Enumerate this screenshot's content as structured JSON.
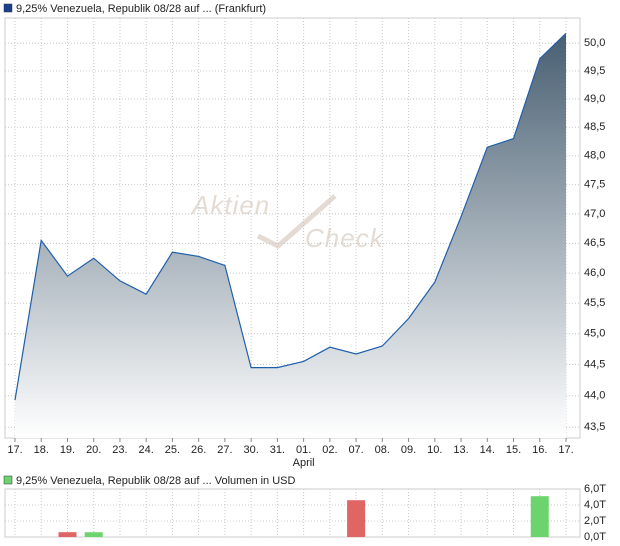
{
  "chart_data": [
    {
      "type": "line",
      "log_scale": true,
      "grid": true,
      "watermark": [
        "Aktien",
        "Check"
      ],
      "categories": [
        "17.",
        "18.",
        "19.",
        "20.",
        "23.",
        "24.",
        "25.",
        "26.",
        "27.",
        "30.",
        "31.",
        "01.",
        "02.",
        "07.",
        "08.",
        "09.",
        "10.",
        "13.",
        "14.",
        "15.",
        "16.",
        "17."
      ],
      "x_sublabels": [
        null,
        null,
        null,
        null,
        null,
        null,
        null,
        null,
        null,
        null,
        null,
        "April",
        null,
        null,
        null,
        null,
        null,
        null,
        null,
        null,
        null,
        null
      ],
      "series": [
        {
          "name": "9,25% Venezuela, Republik 08/28 auf ... (Frankfurt)",
          "color": "#1f5faa",
          "legend_color": "#1a3f8f",
          "values": [
            43.93,
            46.55,
            45.95,
            46.25,
            45.87,
            45.65,
            46.35,
            46.28,
            46.13,
            44.45,
            44.45,
            44.55,
            44.78,
            44.67,
            44.8,
            45.25,
            45.85,
            46.95,
            48.15,
            48.3,
            49.72,
            50.18
          ]
        }
      ],
      "ylim": [
        43.33,
        50.46
      ],
      "yticks": [
        {
          "value": 43.5,
          "label": "43,5"
        },
        {
          "value": 44,
          "label": "44,0"
        },
        {
          "value": 44.5,
          "label": "44,5"
        },
        {
          "value": 45,
          "label": "45,0"
        },
        {
          "value": 45.5,
          "label": "45,5"
        },
        {
          "value": 46,
          "label": "46,0"
        },
        {
          "value": 46.5,
          "label": "46,5"
        },
        {
          "value": 47,
          "label": "47,0"
        },
        {
          "value": 47.5,
          "label": "47,5"
        },
        {
          "value": 48,
          "label": "48,0"
        },
        {
          "value": 48.5,
          "label": "48,5"
        },
        {
          "value": 49,
          "label": "49,0"
        },
        {
          "value": 49.5,
          "label": "49,5"
        },
        {
          "value": 50,
          "label": "50,0"
        }
      ]
    },
    {
      "type": "bar",
      "grid": true,
      "series": [
        {
          "name": "9,25% Venezuela, Republik 08/28 auf ... Volumen in USD",
          "legend_color": "#6dd36d",
          "values": [
            0,
            0,
            0.6,
            0.6,
            0,
            0,
            0,
            0,
            0,
            0,
            0,
            0,
            0,
            4.6,
            0,
            0,
            0,
            0,
            0,
            0,
            5.1,
            0
          ],
          "colors": [
            "#6dd36d",
            "#6dd36d",
            "#e06666",
            "#6dd36d",
            "#6dd36d",
            "#6dd36d",
            "#6dd36d",
            "#6dd36d",
            "#6dd36d",
            "#6dd36d",
            "#6dd36d",
            "#6dd36d",
            "#6dd36d",
            "#e06666",
            "#6dd36d",
            "#6dd36d",
            "#6dd36d",
            "#6dd36d",
            "#6dd36d",
            "#6dd36d",
            "#6dd36d",
            "#6dd36d"
          ]
        }
      ],
      "ylim": [
        0,
        6
      ],
      "yticks": [
        {
          "value": 0,
          "label": "0,0T"
        },
        {
          "value": 2,
          "label": "2,0T"
        },
        {
          "value": 4,
          "label": "4,0T"
        },
        {
          "value": 6,
          "label": "6,0T"
        }
      ]
    }
  ]
}
